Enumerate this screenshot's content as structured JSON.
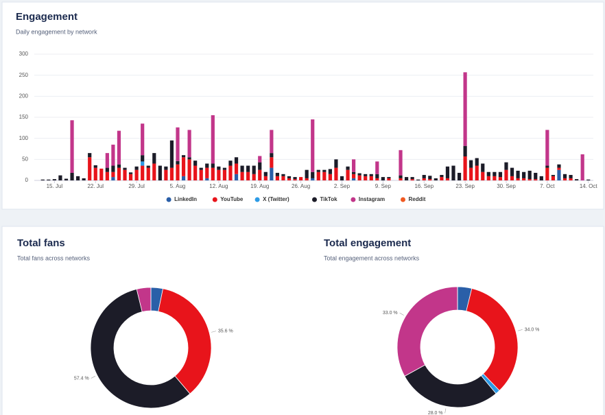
{
  "chart_data": [
    {
      "type": "bar",
      "stacked": true,
      "title": "Engagement",
      "subtitle": "Daily engagement by network",
      "categories": [
        null,
        null,
        "15. Jul",
        null,
        null,
        null,
        null,
        null,
        null,
        "22. Jul",
        null,
        null,
        null,
        null,
        null,
        null,
        "29. Jul",
        null,
        null,
        null,
        null,
        null,
        null,
        "5. Aug",
        null,
        null,
        null,
        null,
        null,
        null,
        "12. Aug",
        null,
        null,
        null,
        null,
        null,
        null,
        "19. Aug",
        null,
        null,
        null,
        null,
        null,
        null,
        "26. Aug",
        null,
        null,
        null,
        null,
        null,
        null,
        "2. Sep",
        null,
        null,
        null,
        null,
        null,
        null,
        "9. Sep",
        null,
        null,
        null,
        null,
        null,
        null,
        "16. Sep",
        null,
        null,
        null,
        null,
        null,
        null,
        "23. Sep",
        null,
        null,
        null,
        null,
        null,
        null,
        "30. Sep",
        null,
        null,
        null,
        null,
        null,
        null,
        "7. Oct",
        null,
        null,
        null,
        null,
        null,
        null,
        "14. Oct"
      ],
      "ylim": [
        0,
        300
      ],
      "yticks": [
        0,
        50,
        100,
        150,
        200,
        250,
        300
      ],
      "grid": true,
      "legend": "bottom",
      "series": [
        {
          "name": "LinkedIn",
          "color": "#2a5fa8",
          "values": [
            0,
            0,
            0,
            0,
            0,
            0,
            0,
            0,
            0,
            0,
            0,
            0,
            8,
            0,
            0,
            0,
            0,
            0,
            0,
            0,
            0,
            0,
            0,
            0,
            10,
            0,
            0,
            0,
            5,
            0,
            0,
            0,
            0,
            15,
            0,
            0,
            0,
            0,
            0,
            30,
            0,
            0,
            0,
            0,
            0,
            0,
            5,
            0,
            0,
            0,
            0,
            0,
            0,
            5,
            0,
            0,
            0,
            0,
            0,
            0,
            0,
            0,
            0,
            0,
            0,
            0,
            0,
            0,
            0,
            0,
            0,
            0,
            0,
            0,
            0,
            0,
            0,
            0,
            0,
            0,
            0,
            0,
            0,
            0,
            0,
            0,
            0,
            0,
            25,
            0,
            0,
            0,
            0,
            0
          ]
        },
        {
          "name": "YouTube",
          "color": "#e8141b",
          "values": [
            0,
            0,
            0,
            0,
            0,
            0,
            0,
            0,
            55,
            30,
            28,
            20,
            12,
            30,
            25,
            15,
            25,
            35,
            30,
            40,
            0,
            25,
            30,
            38,
            45,
            50,
            35,
            25,
            25,
            30,
            25,
            25,
            35,
            25,
            20,
            20,
            15,
            25,
            10,
            25,
            10,
            10,
            5,
            3,
            8,
            5,
            0,
            20,
            20,
            15,
            30,
            0,
            25,
            10,
            12,
            10,
            10,
            5,
            0,
            5,
            0,
            5,
            0,
            3,
            0,
            5,
            3,
            0,
            8,
            5,
            0,
            0,
            57,
            30,
            35,
            20,
            10,
            10,
            8,
            25,
            10,
            5,
            5,
            3,
            3,
            0,
            30,
            10,
            5,
            5,
            5,
            0,
            0,
            0
          ]
        },
        {
          "name": "X (Twitter)",
          "color": "#2d9be6",
          "values": [
            0,
            0,
            0,
            0,
            0,
            0,
            0,
            0,
            0,
            0,
            0,
            0,
            0,
            0,
            0,
            0,
            0,
            10,
            0,
            0,
            0,
            0,
            0,
            0,
            0,
            0,
            0,
            0,
            0,
            0,
            0,
            0,
            0,
            0,
            0,
            0,
            0,
            0,
            0,
            0,
            0,
            0,
            0,
            0,
            0,
            0,
            0,
            0,
            0,
            0,
            0,
            0,
            0,
            0,
            0,
            0,
            0,
            0,
            0,
            0,
            0,
            0,
            0,
            0,
            0,
            0,
            0,
            0,
            0,
            0,
            0,
            0,
            0,
            0,
            0,
            0,
            0,
            0,
            0,
            0,
            0,
            0,
            0,
            0,
            0,
            0,
            0,
            0,
            0,
            0,
            0,
            0,
            0,
            0
          ]
        },
        {
          "name": "TikTok",
          "color": "#1c1c28",
          "values": [
            2,
            2,
            3,
            12,
            4,
            18,
            10,
            5,
            10,
            6,
            0,
            10,
            15,
            8,
            5,
            4,
            8,
            15,
            5,
            25,
            35,
            8,
            65,
            8,
            5,
            5,
            12,
            5,
            10,
            10,
            8,
            5,
            12,
            15,
            15,
            15,
            20,
            18,
            10,
            10,
            8,
            5,
            5,
            5,
            0,
            20,
            15,
            5,
            5,
            12,
            20,
            10,
            8,
            5,
            5,
            5,
            5,
            10,
            8,
            3,
            0,
            7,
            8,
            5,
            2,
            8,
            8,
            5,
            5,
            28,
            35,
            18,
            25,
            18,
            18,
            20,
            10,
            10,
            12,
            18,
            20,
            18,
            15,
            20,
            15,
            10,
            5,
            3,
            8,
            10,
            8,
            3,
            0,
            2
          ]
        },
        {
          "name": "Instagram",
          "color": "#c2368a",
          "values": [
            0,
            0,
            0,
            0,
            0,
            125,
            0,
            0,
            0,
            0,
            0,
            35,
            50,
            80,
            0,
            0,
            0,
            75,
            0,
            0,
            0,
            0,
            0,
            80,
            0,
            65,
            0,
            0,
            0,
            115,
            0,
            0,
            0,
            0,
            0,
            0,
            0,
            15,
            0,
            55,
            0,
            0,
            0,
            0,
            0,
            0,
            125,
            0,
            0,
            0,
            0,
            0,
            0,
            30,
            0,
            0,
            0,
            30,
            0,
            0,
            0,
            60,
            0,
            0,
            0,
            0,
            0,
            0,
            0,
            0,
            0,
            0,
            175,
            0,
            0,
            0,
            0,
            0,
            0,
            0,
            0,
            0,
            0,
            0,
            0,
            0,
            85,
            0,
            0,
            0,
            0,
            0,
            62,
            0
          ]
        },
        {
          "name": "Reddit",
          "color": "#f05a22",
          "values": [
            0,
            0,
            0,
            0,
            0,
            0,
            0,
            0,
            0,
            0,
            0,
            0,
            0,
            0,
            0,
            0,
            0,
            0,
            0,
            0,
            0,
            0,
            0,
            0,
            0,
            0,
            0,
            0,
            0,
            0,
            0,
            0,
            0,
            0,
            0,
            0,
            0,
            0,
            0,
            0,
            0,
            0,
            0,
            0,
            0,
            0,
            0,
            0,
            0,
            0,
            0,
            0,
            0,
            0,
            0,
            0,
            0,
            0,
            0,
            0,
            0,
            0,
            0,
            0,
            0,
            0,
            0,
            0,
            0,
            0,
            0,
            0,
            0,
            0,
            0,
            0,
            0,
            0,
            0,
            0,
            0,
            0,
            0,
            0,
            0,
            0,
            0,
            0,
            0,
            0,
            0,
            0,
            0,
            0
          ]
        }
      ]
    },
    {
      "type": "pie",
      "donut": true,
      "title": "Total fans",
      "subtitle": "Total fans across networks",
      "values": [
        3.2,
        35.6,
        0,
        57.4,
        3.8,
        0
      ],
      "colors": [
        "#2a5fa8",
        "#e8141b",
        "#2d9be6",
        "#1c1c28",
        "#c2368a",
        "#f05a22"
      ],
      "value_labels": [
        null,
        "35.6 %",
        null,
        "57.4 %",
        null,
        null
      ]
    },
    {
      "type": "pie",
      "donut": true,
      "title": "Total engagement",
      "subtitle": "Total engagement across networks",
      "values": [
        3.8,
        34.0,
        1.2,
        28.0,
        33.0,
        0
      ],
      "colors": [
        "#2a5fa8",
        "#e8141b",
        "#2d9be6",
        "#1c1c28",
        "#c2368a",
        "#f05a22"
      ],
      "value_labels": [
        null,
        "34.0 %",
        null,
        "28.0 %",
        "33.0 %",
        null
      ]
    }
  ]
}
